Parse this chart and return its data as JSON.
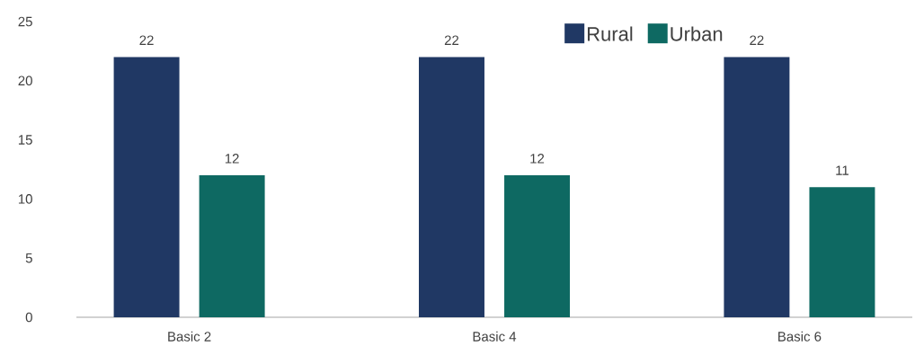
{
  "chart_data": {
    "type": "bar",
    "categories": [
      "Basic 2",
      "Basic 4",
      "Basic 6"
    ],
    "series": [
      {
        "name": "Rural",
        "color": "#203864",
        "values": [
          22,
          22,
          22
        ]
      },
      {
        "name": "Urban",
        "color": "#0e6962",
        "values": [
          12,
          12,
          11
        ]
      }
    ],
    "ylim": [
      0,
      25
    ],
    "yticks": [
      0,
      5,
      10,
      15,
      20,
      25
    ],
    "data_labels": true,
    "legend": "top"
  }
}
